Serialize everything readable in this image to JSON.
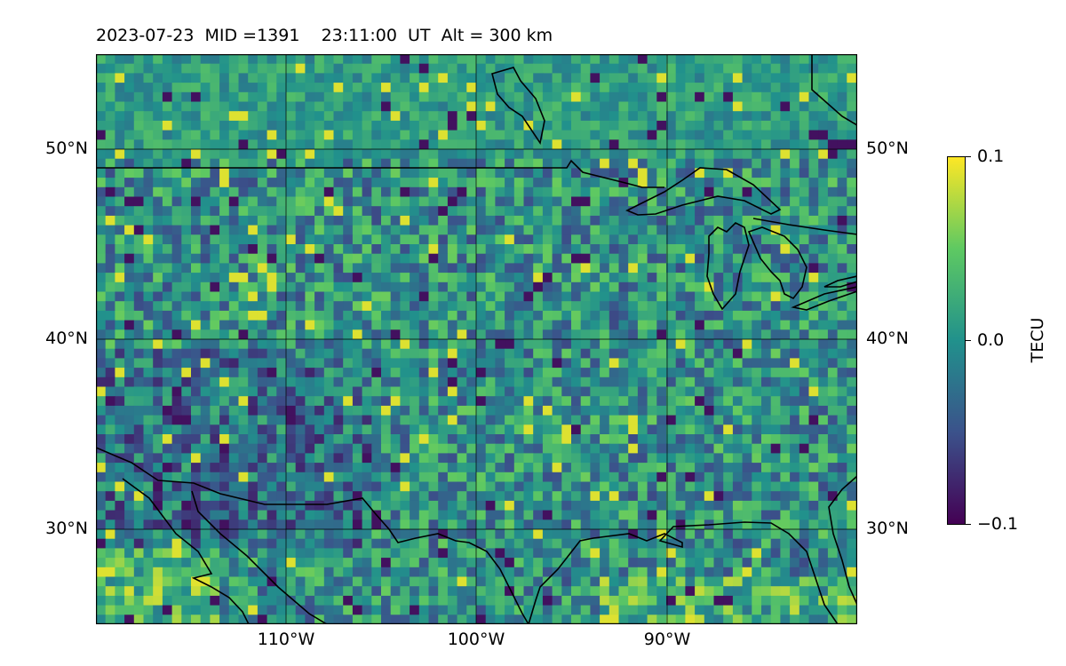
{
  "title": "2023-07-23  MID =1391    23:11:00  UT  Alt = 300 km",
  "map": {
    "lon_range": [
      -120,
      -80
    ],
    "lat_range": [
      25,
      55
    ],
    "lat_labels": [
      "50°N",
      "40°N",
      "30°N"
    ],
    "lon_labels": [
      "110°W",
      "100°W",
      "90°W"
    ],
    "field": "TEC perturbation",
    "colormap": "viridis"
  },
  "colorbar": {
    "label": "TECU",
    "max_label": "0.1",
    "mid_label": "0.0",
    "min_label": "−0.1",
    "range": [
      -0.1,
      0.1
    ]
  },
  "colors": {
    "low": "#440154",
    "mid": "#21918c",
    "high": "#fde725",
    "coastline": "#000000"
  }
}
